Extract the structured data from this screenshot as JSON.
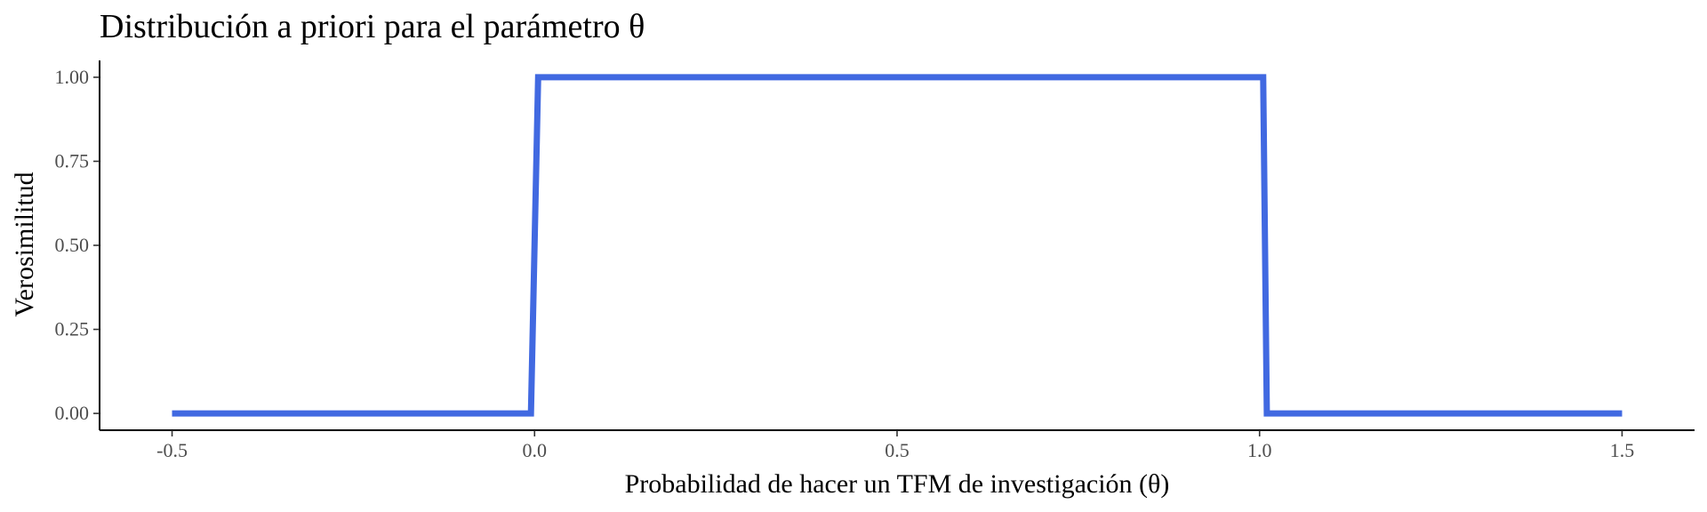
{
  "chart_data": {
    "type": "line",
    "title": "Distribución a priori para el parámetro θ",
    "xlabel": "Probabilidad de hacer un TFM de investigación (θ)",
    "ylabel": "Verosimilitud",
    "xlim": [
      -0.6,
      1.6
    ],
    "ylim": [
      -0.05,
      1.05
    ],
    "x_ticks": [
      -0.5,
      0.0,
      0.5,
      1.0,
      1.5
    ],
    "x_tick_labels": [
      "-0.5",
      "0.0",
      "0.5",
      "1.0",
      "1.5"
    ],
    "y_ticks": [
      0.0,
      0.25,
      0.5,
      0.75,
      1.0
    ],
    "y_tick_labels": [
      "0.00",
      "0.25",
      "0.50",
      "0.75",
      "1.00"
    ],
    "grid": false,
    "legend": "none",
    "series": [
      {
        "color": "#4169E1",
        "x": [
          -0.5,
          -0.005,
          0.005,
          1.005,
          1.01,
          1.5
        ],
        "y": [
          0,
          0,
          1,
          1,
          0,
          0
        ]
      }
    ]
  }
}
